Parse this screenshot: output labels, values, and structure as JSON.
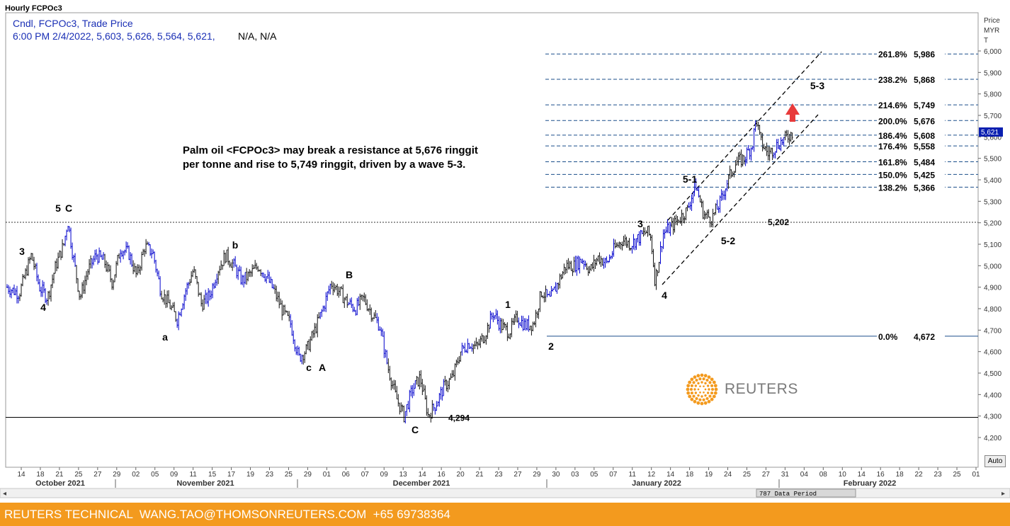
{
  "header": {
    "title": "Hourly FCPOc3",
    "legend_line1": "Cndl, FCPOc3, Trade Price",
    "legend_line2": "6:00 PM 2/4/2022, 5,603, 5,626, 5,564, 5,621,",
    "legend_na": "N/A, N/A"
  },
  "axis": {
    "label_1": "Price",
    "label_2": "MYR",
    "label_3": "T",
    "current_price_tag": "5,621",
    "auto_label": "Auto",
    "data_period_label": "787 Data Period"
  },
  "annotation": {
    "line1": "Palm oil <FCPOc3> may break a resistance at 5,676 ringgit",
    "line2": "per tonne and rise to 5,749 ringgit, driven by a wave 5-3."
  },
  "logo": {
    "text": "REUTERS"
  },
  "footer": {
    "text": "REUTERS TECHNICAL  WANG.TAO@THOMSONREUTERS.COM  +65 69738364"
  },
  "colors": {
    "candle": "#0000cc",
    "fib_line": "#1a4e8a",
    "footer": "#f39a1e",
    "arrow": "#e83a3a"
  },
  "chart_data": {
    "type": "candlestick",
    "title": "Hourly FCPOc3",
    "ylabel": "Price MYR T",
    "ylim": [
      4150,
      6050
    ],
    "y_ticks": [
      4200,
      4300,
      4400,
      4500,
      4600,
      4700,
      4800,
      4900,
      5000,
      5100,
      5200,
      5300,
      5400,
      5500,
      5600,
      5700,
      5800,
      5900,
      6000
    ],
    "y_tick_labels": [
      "4,200",
      "4,300",
      "4,400",
      "4,500",
      "4,600",
      "4,700",
      "4,800",
      "4,900",
      "5,000",
      "5,100",
      "5,200",
      "5,300",
      "5,400",
      "5,500",
      "5,600",
      "5,700",
      "5,800",
      "5,900",
      "6,000"
    ],
    "x_day_ticks": [
      "14",
      "18",
      "21",
      "25",
      "27",
      "29",
      "02",
      "05",
      "09",
      "11",
      "15",
      "17",
      "19",
      "23",
      "25",
      "29",
      "01",
      "06",
      "07",
      "09",
      "13",
      "14",
      "16",
      "20",
      "21",
      "23",
      "27",
      "29",
      "30",
      "03",
      "05",
      "07",
      "11",
      "12",
      "14",
      "18",
      "19",
      "24",
      "25",
      "27",
      "31",
      "04",
      "08",
      "10",
      "14",
      "16",
      "18",
      "22",
      "23",
      "25",
      "01"
    ],
    "months": [
      "October 2021",
      "November 2021",
      "December 2021",
      "January 2022",
      "February 2022"
    ],
    "price_path": [
      [
        0,
        4900
      ],
      [
        3,
        4870
      ],
      [
        6,
        5050
      ],
      [
        8,
        4900
      ],
      [
        10,
        4850
      ],
      [
        12,
        5000
      ],
      [
        14,
        5100
      ],
      [
        15,
        5210
      ],
      [
        16,
        5080
      ],
      [
        18,
        4850
      ],
      [
        20,
        4980
      ],
      [
        22,
        5050
      ],
      [
        24,
        5020
      ],
      [
        26,
        4920
      ],
      [
        28,
        5080
      ],
      [
        30,
        5060
      ],
      [
        32,
        4950
      ],
      [
        34,
        5090
      ],
      [
        36,
        5060
      ],
      [
        38,
        4880
      ],
      [
        40,
        4820
      ],
      [
        42,
        4750
      ],
      [
        44,
        4880
      ],
      [
        46,
        4980
      ],
      [
        48,
        4820
      ],
      [
        50,
        4860
      ],
      [
        52,
        4980
      ],
      [
        54,
        5050
      ],
      [
        56,
        5000
      ],
      [
        58,
        4930
      ],
      [
        60,
        4960
      ],
      [
        62,
        5000
      ],
      [
        64,
        4950
      ],
      [
        66,
        4880
      ],
      [
        68,
        4790
      ],
      [
        70,
        4730
      ],
      [
        72,
        4570
      ],
      [
        74,
        4610
      ],
      [
        76,
        4700
      ],
      [
        78,
        4800
      ],
      [
        80,
        4920
      ],
      [
        82,
        4880
      ],
      [
        84,
        4830
      ],
      [
        86,
        4800
      ],
      [
        88,
        4850
      ],
      [
        90,
        4780
      ],
      [
        92,
        4720
      ],
      [
        94,
        4530
      ],
      [
        96,
        4390
      ],
      [
        98,
        4300
      ],
      [
        100,
        4420
      ],
      [
        102,
        4480
      ],
      [
        104,
        4300
      ],
      [
        106,
        4360
      ],
      [
        108,
        4440
      ],
      [
        110,
        4480
      ],
      [
        112,
        4600
      ],
      [
        114,
        4640
      ],
      [
        116,
        4620
      ],
      [
        118,
        4680
      ],
      [
        120,
        4780
      ],
      [
        122,
        4720
      ],
      [
        124,
        4690
      ],
      [
        126,
        4760
      ],
      [
        128,
        4720
      ],
      [
        130,
        4730
      ],
      [
        132,
        4880
      ],
      [
        134,
        4840
      ],
      [
        136,
        4920
      ],
      [
        138,
        5000
      ],
      [
        140,
        5000
      ],
      [
        142,
        5030
      ],
      [
        144,
        4980
      ],
      [
        146,
        5040
      ],
      [
        148,
        5010
      ],
      [
        150,
        5080
      ],
      [
        152,
        5120
      ],
      [
        154,
        5100
      ],
      [
        156,
        5130
      ],
      [
        158,
        5160
      ],
      [
        159,
        5130
      ],
      [
        160,
        4930
      ],
      [
        161,
        5030
      ],
      [
        162,
        5150
      ],
      [
        164,
        5180
      ],
      [
        166,
        5220
      ],
      [
        168,
        5260
      ],
      [
        170,
        5380
      ],
      [
        172,
        5240
      ],
      [
        174,
        5220
      ],
      [
        176,
        5290
      ],
      [
        178,
        5400
      ],
      [
        180,
        5480
      ],
      [
        182,
        5500
      ],
      [
        184,
        5560
      ],
      [
        185,
        5690
      ],
      [
        186,
        5580
      ],
      [
        188,
        5520
      ],
      [
        190,
        5560
      ],
      [
        192,
        5590
      ],
      [
        194,
        5621
      ]
    ],
    "levels": [
      {
        "label": "261.8%",
        "value": 5986,
        "value_label": "5,986"
      },
      {
        "label": "238.2%",
        "value": 5868,
        "value_label": "5,868"
      },
      {
        "label": "214.6%",
        "value": 5749,
        "value_label": "5,749"
      },
      {
        "label": "200.0%",
        "value": 5676,
        "value_label": "5,676"
      },
      {
        "label": "186.4%",
        "value": 5608,
        "value_label": "5,608"
      },
      {
        "label": "176.4%",
        "value": 5558,
        "value_label": "5,558"
      },
      {
        "label": "161.8%",
        "value": 5484,
        "value_label": "5,484"
      },
      {
        "label": "150.0%",
        "value": 5425,
        "value_label": "5,425"
      },
      {
        "label": "138.2%",
        "value": 5366,
        "value_label": "5,366"
      },
      {
        "label": "0.0%",
        "value": 4672,
        "value_label": "4,672"
      }
    ],
    "horizontal_lines": [
      {
        "value": 5202,
        "label": "5,202",
        "style": "dotted"
      },
      {
        "value": 4294,
        "label": "4,294",
        "style": "solid"
      }
    ],
    "wave_labels": [
      {
        "text": "3",
        "t": 5,
        "price": 5060
      },
      {
        "text": "4",
        "t": 12,
        "price": 4800
      },
      {
        "text": "5",
        "t": 18,
        "price": 5260
      },
      {
        "text": "C",
        "t": 22,
        "price": 5260
      },
      {
        "text": "a",
        "t": 55,
        "price": 4650
      },
      {
        "text": "b",
        "t": 80,
        "price": 5090
      },
      {
        "text": "c",
        "t": 106,
        "price": 4500
      },
      {
        "text": "A",
        "t": 110,
        "price": 4500
      },
      {
        "text": "B",
        "t": 120,
        "price": 4950
      },
      {
        "text": "C",
        "t": 143,
        "price": 4220
      },
      {
        "text": "1",
        "t": 177,
        "price": 4810
      },
      {
        "text": "2",
        "t": 193,
        "price": 4610
      },
      {
        "text": "3",
        "t": 224,
        "price": 5190
      },
      {
        "text": "4",
        "t": 233,
        "price": 4860
      },
      {
        "text": "5-1",
        "t": 241,
        "price": 5400
      },
      {
        "text": "5-2",
        "t": 253,
        "price": 5110
      },
      {
        "text": "5-3",
        "t": 289,
        "price": 5810
      }
    ]
  }
}
